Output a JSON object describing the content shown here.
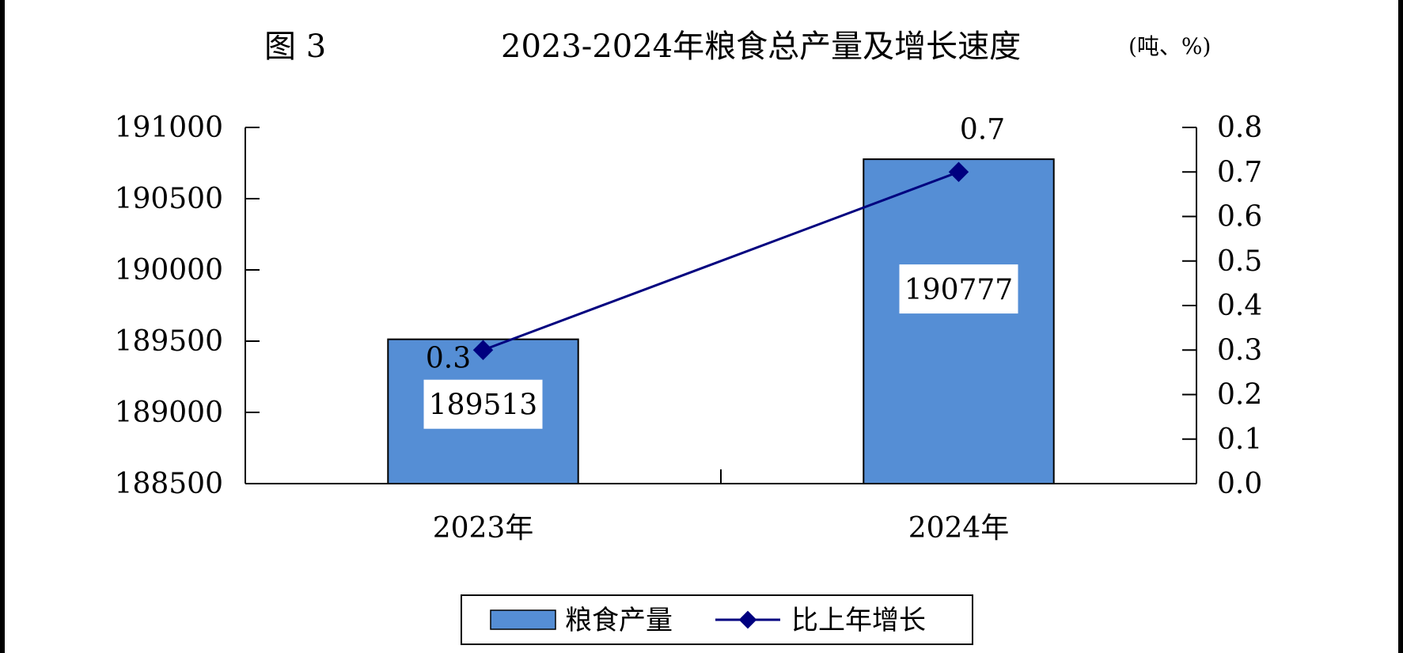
{
  "figure_number": "图 3",
  "unit": "(吨、%)",
  "chart_data": {
    "type": "bar",
    "title": "2023-2024年粮食总产量及增长速度",
    "categories": [
      "2023年",
      "2024年"
    ],
    "series": [
      {
        "name": "粮食产量",
        "type": "bar",
        "axis": "left",
        "values": [
          189513,
          190777
        ],
        "color": "#558ED5"
      },
      {
        "name": "比上年增长",
        "type": "line",
        "axis": "right",
        "values": [
          0.3,
          0.7
        ],
        "color": "#00007F"
      }
    ],
    "bar_labels": [
      "189513",
      "190777"
    ],
    "line_labels": [
      "0.3",
      "0.7"
    ],
    "y_left": {
      "min": 188500,
      "max": 191000,
      "step": 500,
      "ticks": [
        "188500",
        "189000",
        "189500",
        "190000",
        "190500",
        "191000"
      ]
    },
    "y_right": {
      "min": 0,
      "max": 0.8,
      "step": 0.1,
      "ticks": [
        "0.0",
        "0.1",
        "0.2",
        "0.3",
        "0.4",
        "0.5",
        "0.6",
        "0.7",
        "0.8"
      ]
    },
    "legend": {
      "position": "bottom",
      "items": [
        "粮食产量",
        "比上年增长"
      ]
    },
    "grid": false
  }
}
